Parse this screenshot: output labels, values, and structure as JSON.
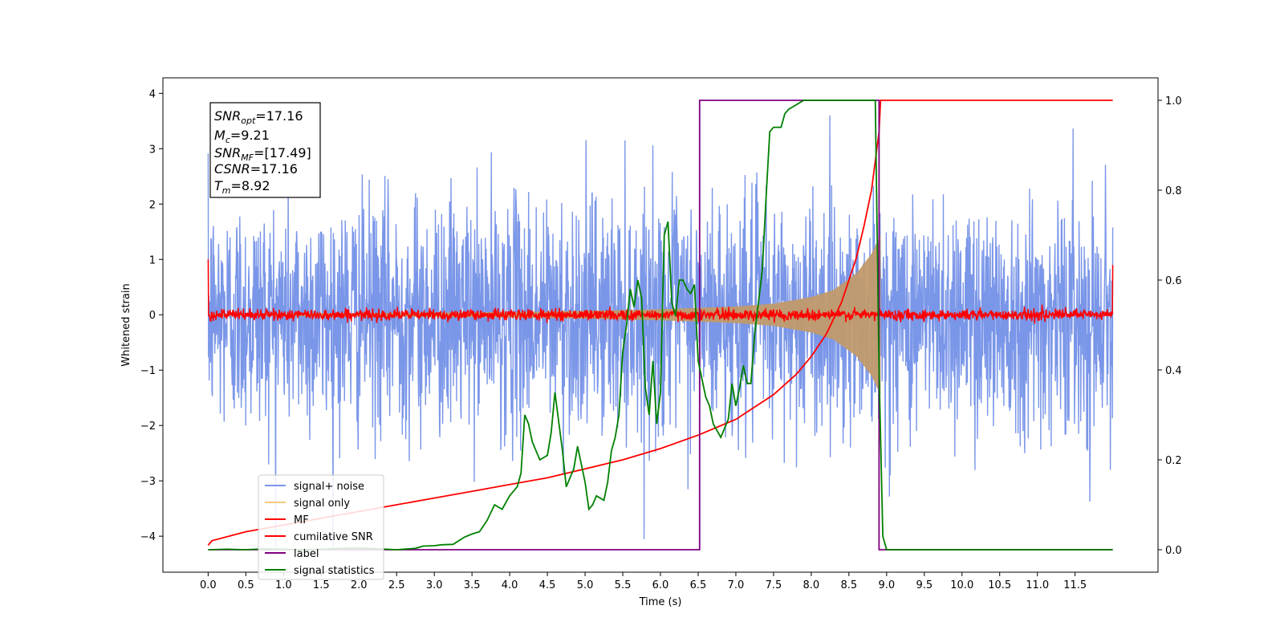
{
  "chart_data": {
    "type": "line",
    "xlabel": "Time (s)",
    "ylabel": "Whitened strain",
    "xlim": [
      -0.6,
      12.6
    ],
    "ylim": [
      -4.65,
      4.28
    ],
    "y2lim": [
      -0.05,
      1.05
    ],
    "xticks": [
      "0.0",
      "0.5",
      "1.0",
      "1.5",
      "2.0",
      "2.5",
      "3.0",
      "3.5",
      "4.0",
      "4.5",
      "5.0",
      "5.5",
      "6.0",
      "6.5",
      "7.0",
      "7.5",
      "8.0",
      "8.5",
      "9.0",
      "9.5",
      "10.0",
      "10.5",
      "11.0",
      "11.5"
    ],
    "yticks": [
      "−4",
      "−3",
      "−2",
      "−1",
      "0",
      "1",
      "2",
      "3",
      "4"
    ],
    "y2ticks": [
      "0.0",
      "0.2",
      "0.4",
      "0.6",
      "0.8",
      "1.0"
    ],
    "grid": false,
    "legend_position": "lower-left",
    "colors": {
      "signal_noise": "#7a96e8",
      "signal_only": "#c19a6b",
      "signal_only_legend": "#f5c97a",
      "mf": "#ff0000",
      "csnr": "#ff0000",
      "label": "#800080",
      "stats": "#008000"
    },
    "annotation": {
      "snr_opt": {
        "sym": "SNR",
        "sub": "opt",
        "value": "=17.16"
      },
      "mc": {
        "sym": "M",
        "sub": "c",
        "value": "=9.21"
      },
      "snr_mf": {
        "sym": "SNR",
        "sub": "MF",
        "value": "=[17.49]"
      },
      "csnr": {
        "sym": "CSNR",
        "sub": "",
        "value": "=17.16"
      },
      "tm": {
        "sym": "T",
        "sub": "m",
        "value": "=8.92"
      }
    },
    "series": [
      {
        "name": "signal+ noise",
        "kind": "noise",
        "x_range": [
          0.0,
          12.0
        ],
        "amplitude_range": [
          -4.2,
          3.7
        ],
        "typical_std": 1.0
      },
      {
        "name": "signal only",
        "kind": "chirp",
        "x_range": [
          0.0,
          8.92
        ],
        "envelope": {
          "x": [
            0.0,
            2.0,
            4.0,
            5.0,
            6.0,
            7.0,
            7.5,
            8.0,
            8.3,
            8.6,
            8.8,
            8.92
          ],
          "amp": [
            0.02,
            0.03,
            0.05,
            0.07,
            0.1,
            0.15,
            0.2,
            0.32,
            0.45,
            0.75,
            1.1,
            1.45
          ]
        }
      },
      {
        "name": "MF",
        "kind": "matched_filter",
        "x_range": [
          0.0,
          12.0
        ],
        "start_value": 1.0,
        "end_value": 0.9,
        "noise_std": 0.05
      },
      {
        "name": "cumilative SNR",
        "axis": "right",
        "x": [
          0.0,
          0.05,
          0.5,
          1.0,
          1.5,
          2.0,
          2.5,
          3.0,
          3.5,
          4.0,
          4.5,
          5.0,
          5.5,
          6.0,
          6.5,
          7.0,
          7.5,
          7.8,
          8.0,
          8.2,
          8.4,
          8.6,
          8.7,
          8.8,
          8.9,
          8.92,
          12.0
        ],
        "y": [
          0.01,
          0.02,
          0.04,
          0.055,
          0.07,
          0.085,
          0.1,
          0.115,
          0.13,
          0.145,
          0.16,
          0.18,
          0.2,
          0.225,
          0.255,
          0.29,
          0.345,
          0.39,
          0.43,
          0.48,
          0.55,
          0.65,
          0.72,
          0.8,
          0.93,
          1.0,
          1.0
        ]
      },
      {
        "name": "label",
        "axis": "right",
        "x": [
          0.0,
          6.52,
          6.52,
          8.9,
          8.9,
          12.0
        ],
        "y": [
          0.0,
          0.0,
          1.0,
          1.0,
          0.0,
          0.0
        ]
      },
      {
        "name": "signal statistics",
        "axis": "right",
        "x": [
          0.0,
          0.25,
          0.5,
          0.75,
          1.0,
          1.25,
          1.5,
          1.75,
          2.0,
          2.25,
          2.5,
          2.75,
          2.85,
          3.0,
          3.1,
          3.25,
          3.4,
          3.5,
          3.6,
          3.7,
          3.8,
          3.9,
          4.0,
          4.1,
          4.15,
          4.2,
          4.25,
          4.3,
          4.35,
          4.4,
          4.5,
          4.55,
          4.6,
          4.7,
          4.75,
          4.8,
          4.85,
          4.9,
          5.0,
          5.05,
          5.1,
          5.15,
          5.25,
          5.3,
          5.35,
          5.4,
          5.45,
          5.5,
          5.55,
          5.6,
          5.65,
          5.7,
          5.75,
          5.8,
          5.85,
          5.9,
          5.95,
          6.0,
          6.05,
          6.1,
          6.15,
          6.2,
          6.25,
          6.3,
          6.35,
          6.4,
          6.45,
          6.5,
          6.55,
          6.6,
          6.65,
          6.7,
          6.8,
          6.85,
          6.9,
          6.95,
          7.0,
          7.05,
          7.1,
          7.15,
          7.2,
          7.25,
          7.3,
          7.35,
          7.4,
          7.45,
          7.5,
          7.55,
          7.6,
          7.65,
          7.7,
          7.8,
          7.9,
          8.0,
          8.1,
          8.2,
          8.3,
          8.5,
          8.7,
          8.8,
          8.85,
          8.9,
          8.95,
          9.0,
          9.05,
          9.1,
          9.3,
          9.5,
          10.0,
          10.5,
          11.0,
          11.5,
          12.0
        ],
        "y": [
          0.0,
          0.001,
          0.0,
          0.002,
          0.001,
          0.0,
          0.001,
          0.003,
          0.004,
          0.002,
          0.0,
          0.003,
          0.008,
          0.009,
          0.011,
          0.012,
          0.028,
          0.035,
          0.04,
          0.065,
          0.1,
          0.09,
          0.12,
          0.14,
          0.17,
          0.3,
          0.28,
          0.24,
          0.22,
          0.2,
          0.21,
          0.26,
          0.35,
          0.22,
          0.14,
          0.16,
          0.18,
          0.23,
          0.15,
          0.09,
          0.1,
          0.12,
          0.11,
          0.15,
          0.22,
          0.25,
          0.3,
          0.44,
          0.5,
          0.58,
          0.54,
          0.6,
          0.56,
          0.36,
          0.3,
          0.42,
          0.28,
          0.35,
          0.7,
          0.73,
          0.55,
          0.52,
          0.6,
          0.6,
          0.58,
          0.57,
          0.59,
          0.42,
          0.38,
          0.34,
          0.32,
          0.28,
          0.25,
          0.27,
          0.29,
          0.37,
          0.32,
          0.36,
          0.41,
          0.37,
          0.37,
          0.48,
          0.55,
          0.62,
          0.78,
          0.93,
          0.94,
          0.94,
          0.94,
          0.97,
          0.98,
          0.99,
          1.0,
          1.0,
          1.0,
          1.0,
          1.0,
          1.0,
          1.0,
          1.0,
          1.0,
          0.4,
          0.03,
          0.0,
          0.0,
          0.0,
          0.0,
          0.0,
          0.0,
          0.0,
          0.0,
          0.0,
          0.0
        ]
      }
    ]
  }
}
